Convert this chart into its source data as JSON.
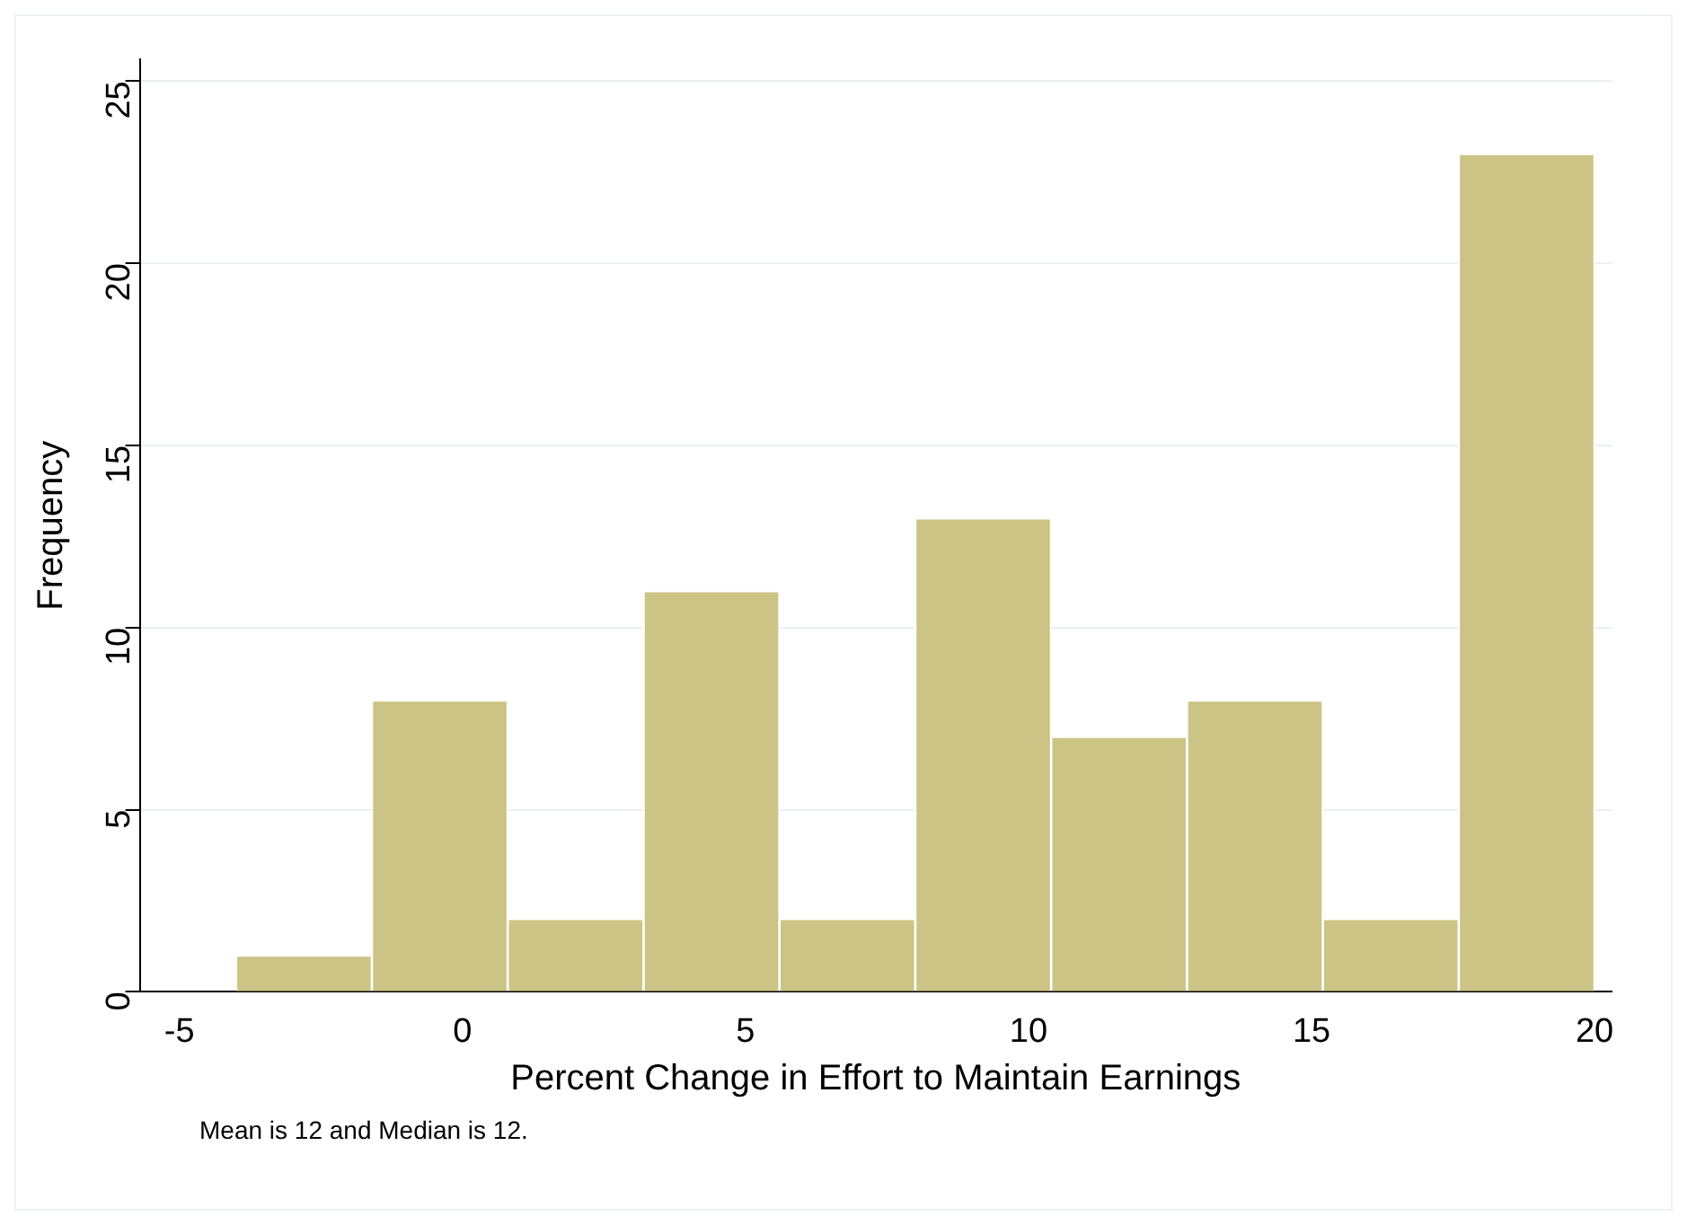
{
  "chart_data": {
    "type": "histogram",
    "xlabel": "Percent Change in Effort to Maintain Earnings",
    "ylabel": "Frequency",
    "bins": [
      -4,
      -1.6,
      0.8,
      3.2,
      5.6,
      8,
      10.4,
      12.8,
      15.2,
      17.6,
      20
    ],
    "values": [
      1,
      8,
      2,
      11,
      2,
      13,
      7,
      8,
      2,
      23
    ],
    "color": "#cbc485",
    "xlim": [
      -5.7,
      20.3
    ],
    "xticks": [
      -5,
      0,
      5,
      10,
      15,
      20
    ],
    "ylim": [
      0,
      25.6
    ],
    "yticks": [
      0,
      5,
      10,
      15,
      20,
      25
    ],
    "grid": "y",
    "annotations": [
      "Mean is 12 and Median is 12."
    ]
  }
}
